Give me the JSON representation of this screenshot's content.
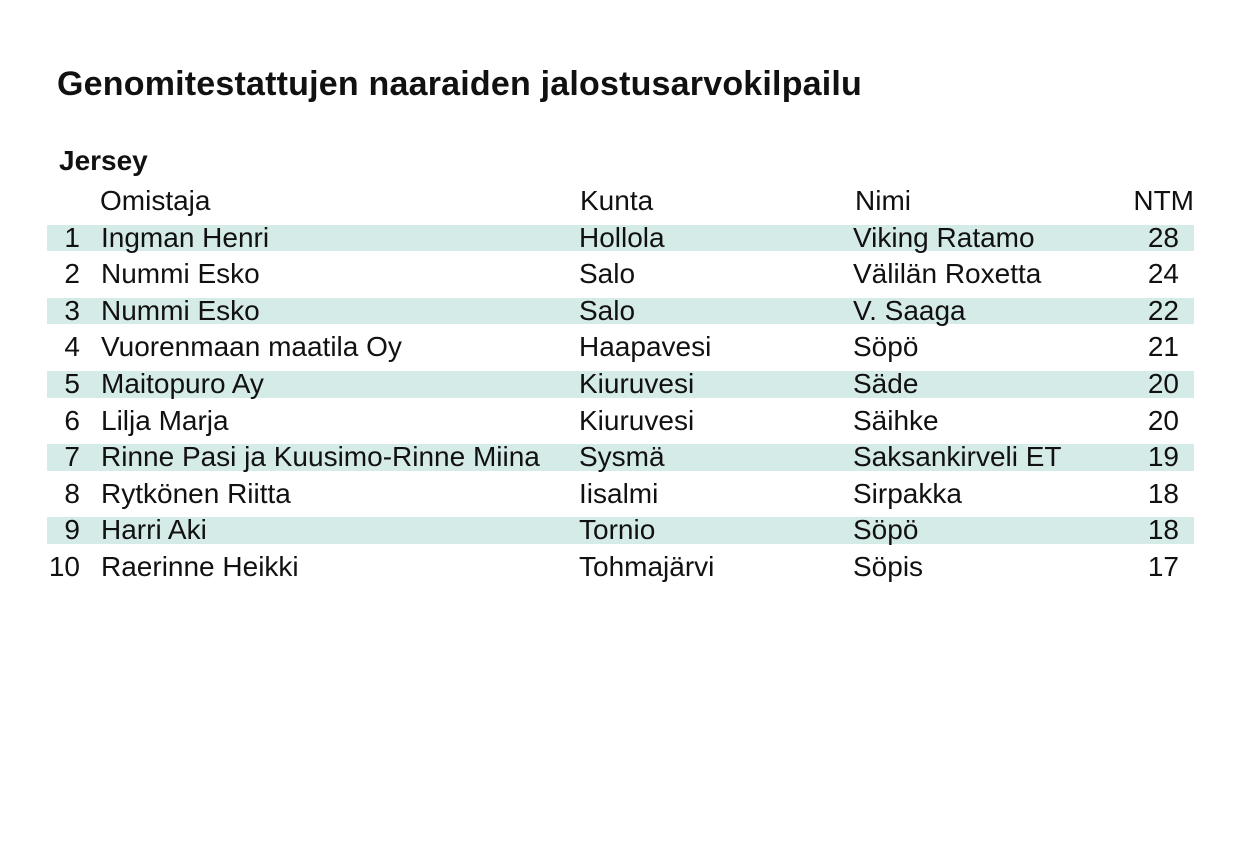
{
  "title": "Genomitestattujen naaraiden jalostusarvokilpailu",
  "section": "Jersey",
  "colors": {
    "stripe": "#d5ebe8",
    "text": "#111111",
    "background": "#ffffff"
  },
  "chart_data": {
    "type": "table",
    "title": "Genomitestattujen naaraiden jalostusarvokilpailu",
    "subtitle": "Jersey",
    "columns": [
      "",
      "Omistaja",
      "Kunta",
      "Nimi",
      "NTM"
    ],
    "rows": [
      {
        "rank": "1",
        "owner": "Ingman Henri",
        "town": "Hollola",
        "name": "Viking Ratamo",
        "ntm": 28
      },
      {
        "rank": "2",
        "owner": "Nummi Esko",
        "town": "Salo",
        "name": "Välilän Roxetta",
        "ntm": 24
      },
      {
        "rank": "3",
        "owner": "Nummi Esko",
        "town": "Salo",
        "name": "V. Saaga",
        "ntm": 22
      },
      {
        "rank": "4",
        "owner": "Vuorenmaan maatila Oy",
        "town": "Haapavesi",
        "name": "Söpö",
        "ntm": 21
      },
      {
        "rank": "5",
        "owner": "Maitopuro Ay",
        "town": "Kiuruvesi",
        "name": "Säde",
        "ntm": 20
      },
      {
        "rank": "6",
        "owner": "Lilja Marja",
        "town": "Kiuruvesi",
        "name": "Säihke",
        "ntm": 20
      },
      {
        "rank": "7",
        "owner": "Rinne Pasi ja Kuusimo-Rinne Miina",
        "town": "Sysmä",
        "name": "Saksankirveli ET",
        "ntm": 19
      },
      {
        "rank": "8",
        "owner": "Rytkönen Riitta",
        "town": "Iisalmi",
        "name": "Sirpakka",
        "ntm": 18
      },
      {
        "rank": "9",
        "owner": "Harri Aki",
        "town": "Tornio",
        "name": "Söpö",
        "ntm": 18
      },
      {
        "rank": "10",
        "owner": "Raerinne Heikki",
        "town": "Tohmajärvi",
        "name": "Söpis",
        "ntm": 17
      }
    ]
  }
}
